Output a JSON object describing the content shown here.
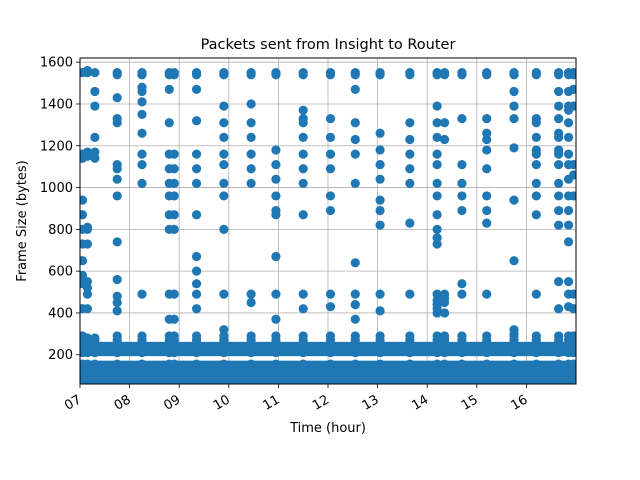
{
  "chart_data": {
    "type": "scatter",
    "title": "Packets sent from Insight to Router",
    "xlabel": "Time (hour)",
    "ylabel": "Frame Size (bytes)",
    "xlim": [
      7.0,
      17.0
    ],
    "ylim": [
      60,
      1620
    ],
    "x_ticks": [
      7,
      8,
      9,
      10,
      11,
      12,
      13,
      14,
      15,
      16
    ],
    "x_tick_labels": [
      "07",
      "08",
      "09",
      "10",
      "11",
      "12",
      "13",
      "14",
      "15",
      "16"
    ],
    "y_ticks": [
      200,
      400,
      600,
      800,
      1000,
      1200,
      1400,
      1600
    ],
    "y_tick_labels": [
      "200",
      "400",
      "600",
      "800",
      "1000",
      "1200",
      "1400",
      "1600"
    ],
    "grid": true,
    "legend": "none",
    "marker_color": "#1f77b4",
    "bands": [
      {
        "y_min": 75,
        "y_max": 155
      },
      {
        "y_min": 210,
        "y_max": 245
      }
    ],
    "columns": [
      {
        "x": 7.05,
        "y": [
          1550,
          1160,
          1150,
          1140,
          940,
          870,
          800,
          730,
          650,
          580,
          560,
          540,
          420,
          290,
          270,
          260
        ]
      },
      {
        "x": 7.15,
        "y": [
          1550,
          1560,
          1170,
          1150,
          810,
          800,
          730,
          550,
          520,
          490,
          420,
          280,
          270
        ]
      },
      {
        "x": 7.3,
        "y": [
          1550,
          1460,
          1390,
          1240,
          1170,
          1140,
          280,
          270
        ]
      },
      {
        "x": 7.75,
        "y": [
          1550,
          1540,
          1430,
          1330,
          1310,
          1110,
          1090,
          1040,
          960,
          740,
          560,
          480,
          450,
          410,
          290,
          270
        ]
      },
      {
        "x": 8.25,
        "y": [
          1550,
          1540,
          1480,
          1460,
          1410,
          1350,
          1260,
          1160,
          1110,
          1020,
          490,
          290,
          270
        ]
      },
      {
        "x": 8.8,
        "y": [
          1550,
          1540,
          1470,
          1310,
          1160,
          1090,
          1020,
          960,
          870,
          800,
          490,
          370,
          290,
          270
        ]
      },
      {
        "x": 8.9,
        "y": [
          1550,
          1540,
          1160,
          1090,
          1020,
          960,
          870,
          800,
          490,
          370,
          290,
          270
        ]
      },
      {
        "x": 9.35,
        "y": [
          1550,
          1540,
          1470,
          1320,
          1160,
          1090,
          1020,
          870,
          670,
          600,
          540,
          490,
          420,
          290,
          270
        ]
      },
      {
        "x": 9.9,
        "y": [
          1550,
          1540,
          1390,
          1310,
          1240,
          1160,
          1110,
          1020,
          960,
          800,
          490,
          320,
          290,
          270
        ]
      },
      {
        "x": 10.45,
        "y": [
          1550,
          1540,
          1400,
          1310,
          1240,
          1160,
          1090,
          1020,
          490,
          450,
          290,
          270
        ]
      },
      {
        "x": 10.95,
        "y": [
          1550,
          1540,
          1180,
          1110,
          1040,
          960,
          890,
          870,
          670,
          490,
          370,
          290,
          270
        ]
      },
      {
        "x": 11.5,
        "y": [
          1550,
          1540,
          1370,
          1330,
          1310,
          1240,
          1160,
          1090,
          1020,
          870,
          490,
          420,
          290,
          270
        ]
      },
      {
        "x": 12.05,
        "y": [
          1550,
          1540,
          1330,
          1240,
          1160,
          1090,
          960,
          890,
          490,
          430,
          290,
          270
        ]
      },
      {
        "x": 12.55,
        "y": [
          1550,
          1540,
          1470,
          1310,
          1230,
          1160,
          1020,
          640,
          490,
          440,
          370,
          290,
          270
        ]
      },
      {
        "x": 13.05,
        "y": [
          1550,
          1540,
          1260,
          1180,
          1110,
          1040,
          940,
          890,
          820,
          490,
          410,
          290,
          270
        ]
      },
      {
        "x": 13.65,
        "y": [
          1550,
          1540,
          1310,
          1230,
          1160,
          1090,
          1020,
          830,
          490,
          290,
          270
        ]
      },
      {
        "x": 14.2,
        "y": [
          1550,
          1540,
          1390,
          1310,
          1240,
          1160,
          1110,
          1020,
          960,
          870,
          800,
          760,
          730,
          490,
          460,
          440,
          420,
          400,
          290,
          270
        ]
      },
      {
        "x": 14.35,
        "y": [
          1550,
          1540,
          1310,
          1230,
          490,
          470,
          450,
          400,
          290,
          270
        ]
      },
      {
        "x": 14.7,
        "y": [
          1550,
          1540,
          1330,
          1110,
          1020,
          960,
          890,
          540,
          490,
          290,
          270
        ]
      },
      {
        "x": 15.2,
        "y": [
          1550,
          1540,
          1330,
          1260,
          1230,
          1180,
          1090,
          960,
          890,
          830,
          490,
          290,
          270
        ]
      },
      {
        "x": 15.75,
        "y": [
          1550,
          1540,
          1460,
          1390,
          1330,
          1190,
          940,
          650,
          320,
          300,
          290,
          270
        ]
      },
      {
        "x": 16.2,
        "y": [
          1550,
          1540,
          1330,
          1310,
          1240,
          1180,
          1160,
          1110,
          1020,
          960,
          870,
          490,
          290,
          270
        ]
      },
      {
        "x": 16.65,
        "y": [
          1550,
          1540,
          1460,
          1390,
          1330,
          1260,
          1240,
          1180,
          1160,
          1110,
          1020,
          960,
          890,
          820,
          550,
          420,
          290,
          270
        ]
      },
      {
        "x": 16.85,
        "y": [
          1550,
          1540,
          1460,
          1390,
          1370,
          1310,
          1240,
          1160,
          1110,
          1040,
          960,
          890,
          820,
          740,
          550,
          490,
          430,
          290,
          270
        ]
      },
      {
        "x": 16.95,
        "y": [
          1550,
          1540,
          1470,
          1390,
          1110,
          1060,
          960,
          490,
          420,
          290,
          270
        ]
      }
    ]
  }
}
